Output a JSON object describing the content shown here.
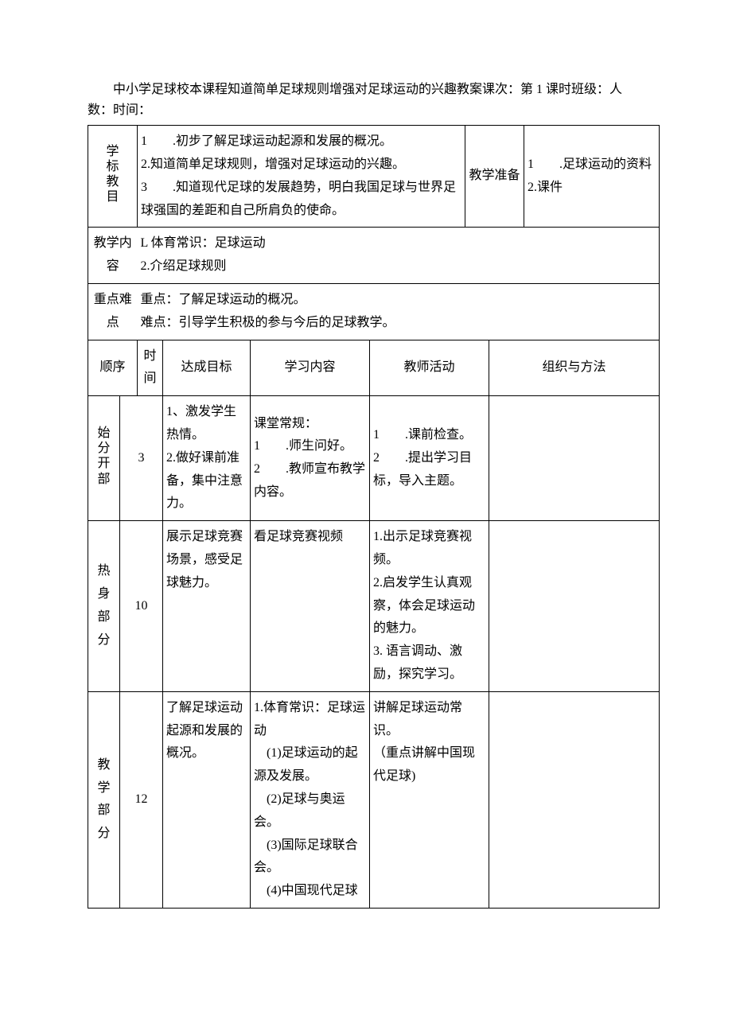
{
  "title": "中小学足球校本课程知道简单足球规则增强对足球运动的兴趣教案课次：第 1 课时班级：人数：时间：",
  "row1": {
    "label": "学标教目",
    "goals": "1　　.初步了解足球运动起源和发展的概况。\n2.知道简单足球规则，增强对足球运动的兴趣。\n3　　.知道现代足球的发展趋势，明白我国足球与世界足球强国的差距和自己所肩负的使命。",
    "prep_label": "教学准备",
    "prep": "1　　.足球运动的资料\n2.课件"
  },
  "row2": {
    "label": "教学内容",
    "content": "L 体育常识：足球运动\n2.介绍足球规则"
  },
  "row3": {
    "label": "重点难点",
    "content": "重点：了解足球运动的概况。\n难点：引导学生积极的参与今后的足球教学。"
  },
  "headers": {
    "c1": "顺序",
    "c2": "时间",
    "c3": "达成目标",
    "c4": "学习内容",
    "c5": "教师活动",
    "c6": "组织与方法"
  },
  "sec1": {
    "name": "始分开部",
    "time": "3",
    "goal": "1、激发学生热情。\n2.做好课前准备，集中注意力。",
    "study": "课堂常规：\n1　　.师生问好。\n2　　.教师宣布教学内容。",
    "teacher": "1　　.课前检查。\n2　　.提出学习目标，导入主题。",
    "org": ""
  },
  "sec2": {
    "name": "热身部分",
    "time": "10",
    "goal": "展示足球竞赛场景，感受足球魅力。",
    "study": "看足球竞赛视频",
    "teacher": "1.出示足球竞赛视频。\n2.启发学生认真观察，体会足球运动的魅力。\n3. 语言调动、激励，探究学习。",
    "org": ""
  },
  "sec3": {
    "name": "教学部分",
    "time": "12",
    "goal": "了解足球运动起源和发展的概况。",
    "study": "1.体育常识：足球运动\n　(1)足球运动的起源及发展。\n　(2)足球与奥运会。\n　(3)国际足球联合会。\n　(4)中国现代足球",
    "teacher": "讲解足球运动常识。\n（重点讲解中国现代足球)",
    "org": ""
  }
}
